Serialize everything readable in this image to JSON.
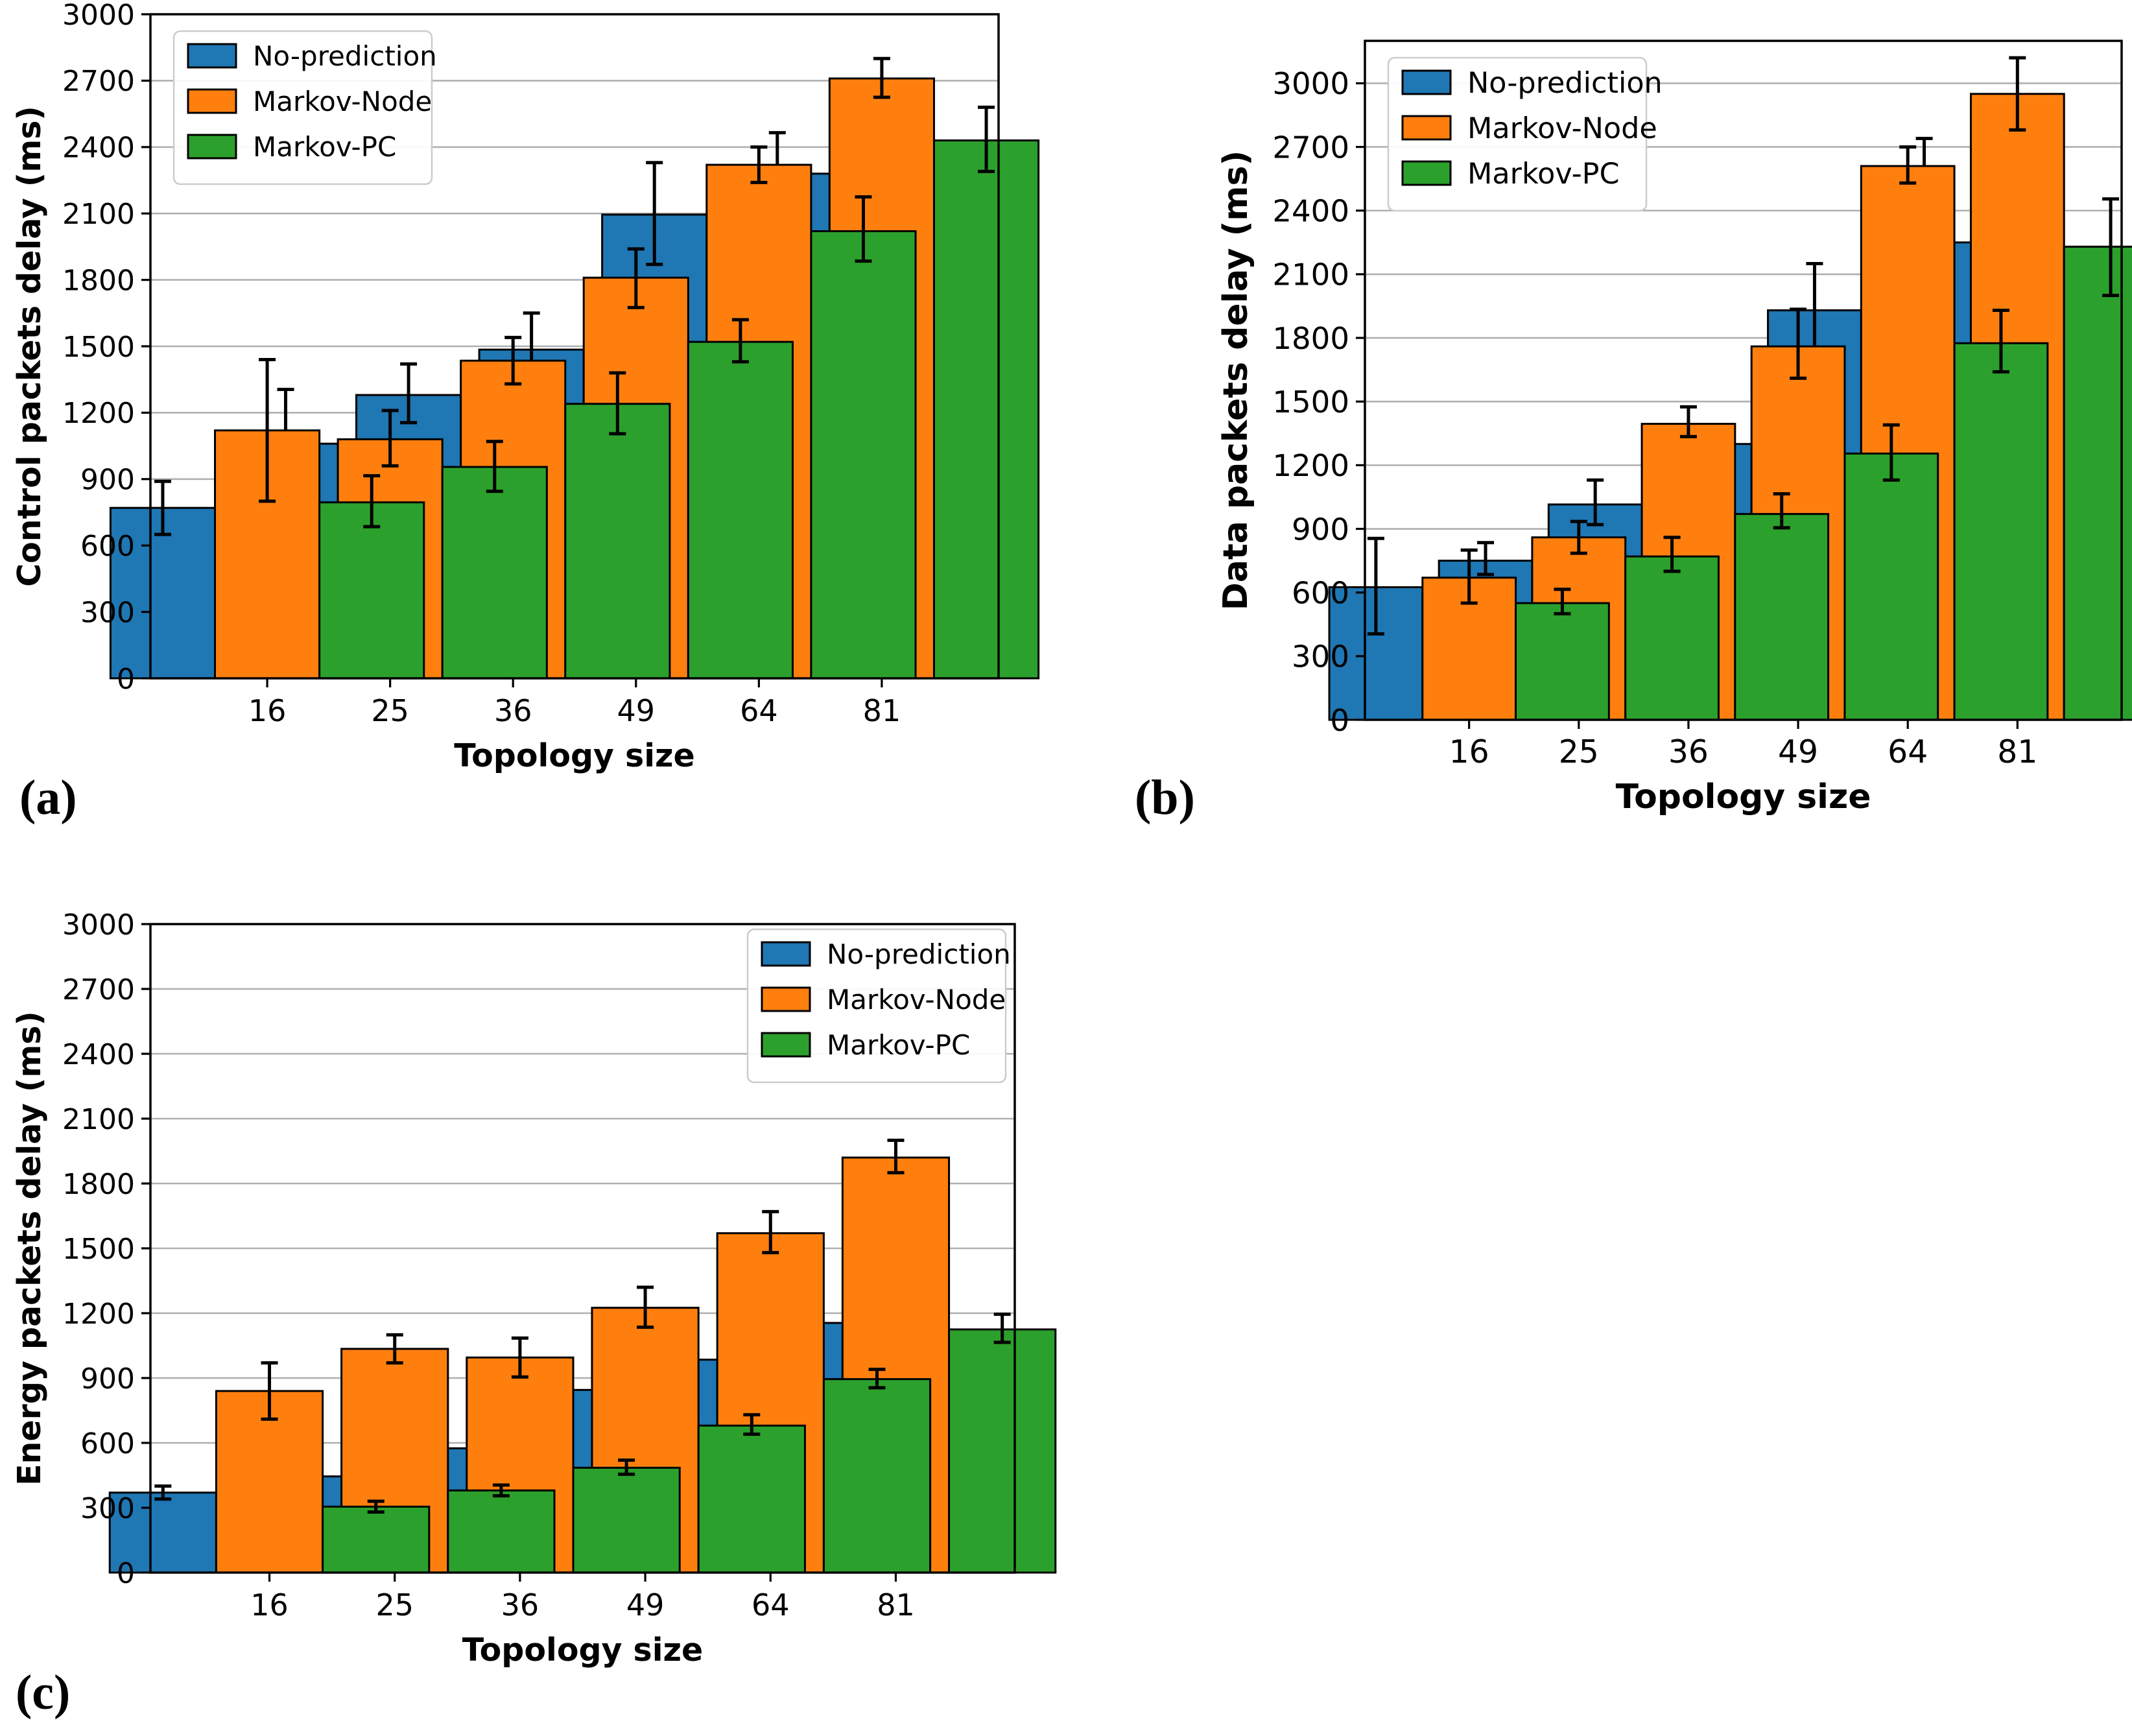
{
  "captions": {
    "a": "(a)",
    "b": "(b)",
    "c": "(c)"
  },
  "colors": {
    "no_prediction": "#1f77b4",
    "markov_node": "#ff7f0e",
    "markov_pc": "#2ca02c",
    "gridline": "#b0b0b0",
    "axis": "#000000",
    "legend_border": "#cccccc",
    "background": "#ffffff"
  },
  "chart_data": [
    {
      "id": "a",
      "type": "bar",
      "caption": "(a)",
      "xlabel": "Topology size",
      "ylabel": "Control packets delay (ms)",
      "categories": [
        "16",
        "25",
        "36",
        "49",
        "64",
        "81"
      ],
      "ylim": [
        0,
        3000
      ],
      "yticks": [
        0,
        300,
        600,
        900,
        1200,
        1500,
        1800,
        2100,
        2400,
        2700,
        3000
      ],
      "grid": true,
      "legend_position": "upper-left",
      "error_bars": true,
      "series": [
        {
          "name": "No-prediction",
          "color": "#1f77b4",
          "values": [
            770,
            1060,
            1280,
            1485,
            2095,
            2280
          ],
          "err_low": [
            650,
            830,
            1155,
            1335,
            1870,
            2090
          ],
          "err_high": [
            890,
            1305,
            1420,
            1650,
            2330,
            2465
          ]
        },
        {
          "name": "Markov-Node",
          "color": "#ff7f0e",
          "values": [
            1120,
            1080,
            1435,
            1810,
            2320,
            2710
          ],
          "err_low": [
            800,
            960,
            1330,
            1675,
            2240,
            2625
          ],
          "err_high": [
            1440,
            1210,
            1540,
            1940,
            2400,
            2800
          ]
        },
        {
          "name": "Markov-PC",
          "color": "#2ca02c",
          "values": [
            795,
            955,
            1240,
            1520,
            2020,
            2430
          ],
          "err_low": [
            685,
            845,
            1105,
            1430,
            1885,
            2290
          ],
          "err_high": [
            915,
            1070,
            1380,
            1620,
            2175,
            2580
          ]
        }
      ]
    },
    {
      "id": "b",
      "type": "bar",
      "caption": "(b)",
      "xlabel": "Topology size",
      "ylabel": "Data packets delay (ms)",
      "categories": [
        "16",
        "25",
        "36",
        "49",
        "64",
        "81"
      ],
      "ylim": [
        0,
        3200
      ],
      "yticks": [
        0,
        300,
        600,
        900,
        1200,
        1500,
        1800,
        2100,
        2400,
        2700,
        3000
      ],
      "grid": true,
      "legend_position": "upper-left",
      "error_bars": true,
      "series": [
        {
          "name": "No-prediction",
          "color": "#1f77b4",
          "values": [
            625,
            750,
            1015,
            1300,
            1930,
            2250
          ],
          "err_low": [
            405,
            685,
            920,
            1220,
            1720,
            1760
          ],
          "err_high": [
            855,
            835,
            1130,
            1390,
            2150,
            2740
          ]
        },
        {
          "name": "Markov-Node",
          "color": "#ff7f0e",
          "values": [
            670,
            860,
            1395,
            1760,
            2610,
            2950
          ],
          "err_low": [
            550,
            785,
            1335,
            1610,
            2530,
            2780
          ],
          "err_high": [
            800,
            935,
            1475,
            1935,
            2700,
            3120
          ]
        },
        {
          "name": "Markov-PC",
          "color": "#2ca02c",
          "values": [
            550,
            770,
            970,
            1255,
            1775,
            2230
          ],
          "err_low": [
            500,
            700,
            905,
            1130,
            1640,
            2000
          ],
          "err_high": [
            615,
            860,
            1065,
            1390,
            1930,
            2455
          ]
        }
      ]
    },
    {
      "id": "c",
      "type": "bar",
      "caption": "(c)",
      "xlabel": "Topology size",
      "ylabel": "Energy packets delay (ms)",
      "categories": [
        "16",
        "25",
        "36",
        "49",
        "64",
        "81"
      ],
      "ylim": [
        0,
        3000
      ],
      "yticks": [
        0,
        300,
        600,
        900,
        1200,
        1500,
        1800,
        2100,
        2400,
        2700,
        3000
      ],
      "grid": true,
      "legend_position": "upper-right",
      "error_bars": true,
      "series": [
        {
          "name": "No-prediction",
          "color": "#1f77b4",
          "values": [
            370,
            445,
            575,
            845,
            985,
            1155
          ],
          "err_low": [
            340,
            400,
            540,
            810,
            935,
            1090
          ],
          "err_high": [
            400,
            490,
            615,
            880,
            1040,
            1235
          ]
        },
        {
          "name": "Markov-Node",
          "color": "#ff7f0e",
          "values": [
            840,
            1035,
            995,
            1225,
            1570,
            1920
          ],
          "err_low": [
            710,
            970,
            905,
            1135,
            1480,
            1850
          ],
          "err_high": [
            970,
            1100,
            1085,
            1320,
            1670,
            2000
          ]
        },
        {
          "name": "Markov-PC",
          "color": "#2ca02c",
          "values": [
            305,
            380,
            485,
            680,
            895,
            1125
          ],
          "err_low": [
            280,
            355,
            455,
            640,
            855,
            1065
          ],
          "err_high": [
            330,
            405,
            520,
            730,
            940,
            1195
          ]
        }
      ]
    }
  ]
}
